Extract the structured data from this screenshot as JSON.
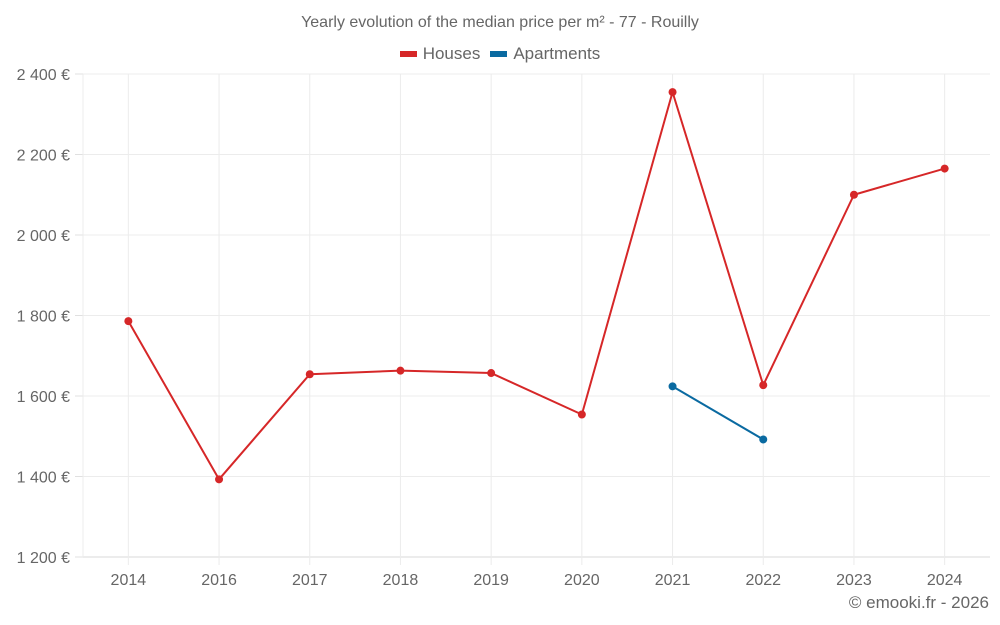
{
  "chart": {
    "title": "Yearly evolution of the median price per m² - 77 - Rouilly",
    "credit": "© emooki.fr - 2026",
    "legend": [
      {
        "label": "Houses",
        "color": "#d62728"
      },
      {
        "label": "Apartments",
        "color": "#0a6aa1"
      }
    ]
  },
  "chart_data": {
    "type": "line",
    "title": "Yearly evolution of the median price per m² - 77 - Rouilly",
    "xlabel": "",
    "ylabel": "",
    "categories": [
      "2014",
      "2016",
      "2017",
      "2018",
      "2019",
      "2020",
      "2021",
      "2022",
      "2023",
      "2024"
    ],
    "series": [
      {
        "name": "Houses",
        "color": "#d62728",
        "values": [
          1786,
          1393,
          1654,
          1663,
          1657,
          1554,
          2355,
          1627,
          2100,
          2165
        ]
      },
      {
        "name": "Apartments",
        "color": "#0a6aa1",
        "values": [
          null,
          null,
          null,
          null,
          null,
          null,
          1624,
          1492,
          null,
          null
        ]
      }
    ],
    "ylim": [
      1200,
      2400
    ],
    "yticks": [
      1200,
      1400,
      1600,
      1800,
      2000,
      2200,
      2400
    ],
    "ytick_labels": [
      "1 200 €",
      "1 400 €",
      "1 600 €",
      "1 800 €",
      "2 000 €",
      "2 200 €",
      "2 400 €"
    ],
    "grid": true,
    "legend_position": "top"
  }
}
